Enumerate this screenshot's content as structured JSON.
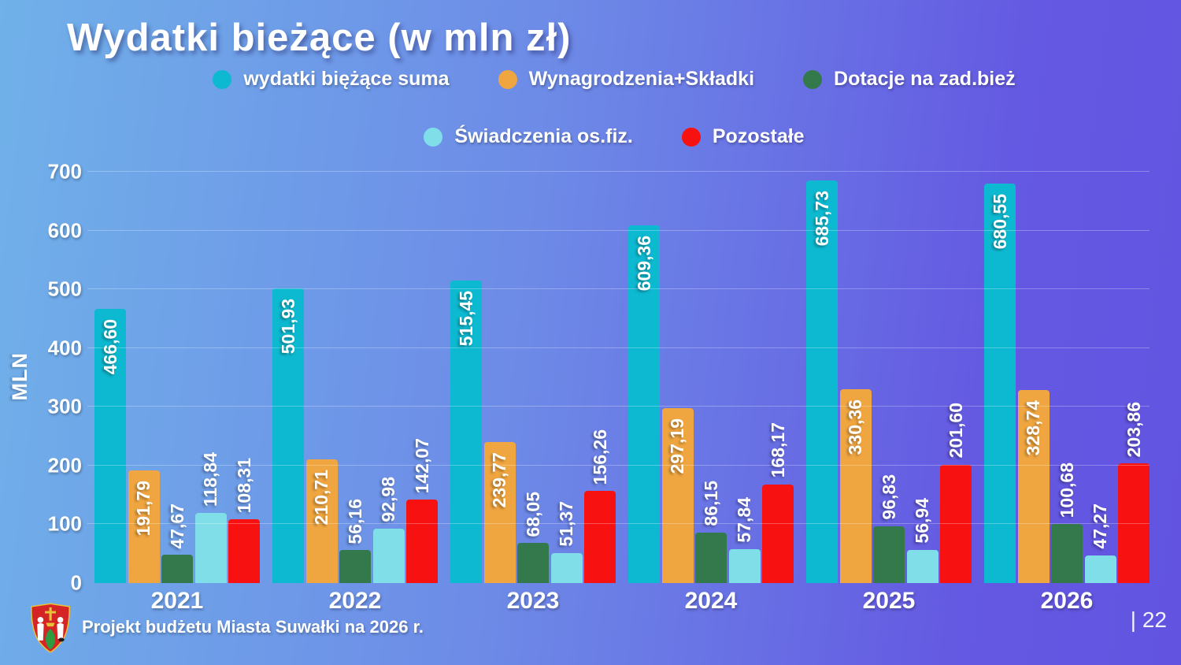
{
  "slide": {
    "title": "Wydatki bieżące (w mln zł)",
    "footer": {
      "logo": "suwalki-coat-of-arms",
      "text": "Projekt budżetu Miasta Suwałki na 2026 r.",
      "page_number": "| 22"
    }
  },
  "chart_data": {
    "type": "bar",
    "title": "Wydatki bieżące (w mln zł)",
    "xlabel": "",
    "ylabel": "MLN",
    "ylim": [
      0,
      700
    ],
    "yticks": [
      0,
      100,
      200,
      300,
      400,
      500,
      600,
      700
    ],
    "grid": true,
    "legend_position": "top",
    "categories": [
      "2021",
      "2022",
      "2023",
      "2024",
      "2025",
      "2026"
    ],
    "series": [
      {
        "name": "wydatki biężące suma",
        "color": "#0db9d0",
        "values": [
          466.6,
          501.93,
          515.45,
          609.36,
          685.73,
          680.55
        ],
        "display_values": [
          "466,60",
          "501,93",
          "515,45",
          "609,36",
          "685,73",
          "680,55"
        ],
        "label_position": "inside"
      },
      {
        "name": "Wynagrodzenia+Składki",
        "color": "#f0a640",
        "values": [
          191.79,
          210.71,
          239.77,
          297.19,
          330.36,
          328.74
        ],
        "display_values": [
          "191,79",
          "210,71",
          "239,77",
          "297,19",
          "330,36",
          "328,74"
        ],
        "label_position": "inside"
      },
      {
        "name": "Dotacje na zad.bież",
        "color": "#33794b",
        "values": [
          47.67,
          56.16,
          68.05,
          86.15,
          96.83,
          100.68
        ],
        "display_values": [
          "47,67",
          "56,16",
          "68,05",
          "86,15",
          "96,83",
          "100,68"
        ],
        "label_position": "above"
      },
      {
        "name": "Świadczenia os.fiz.",
        "color": "#7fdee8",
        "values": [
          118.84,
          92.98,
          51.37,
          57.84,
          56.94,
          47.27
        ],
        "display_values": [
          "118,84",
          "92,98",
          "51,37",
          "57,84",
          "56,94",
          "47,27"
        ],
        "label_position": "above"
      },
      {
        "name": "Pozostałe",
        "color": "#f81111",
        "values": [
          108.31,
          142.07,
          156.26,
          168.17,
          201.6,
          203.86
        ],
        "display_values": [
          "108,31",
          "142,07",
          "156,26",
          "168,17",
          "201,60",
          "203,86"
        ],
        "label_position": "above"
      }
    ],
    "legend_rows": [
      [
        0,
        1,
        2
      ],
      [
        3,
        4
      ]
    ]
  }
}
